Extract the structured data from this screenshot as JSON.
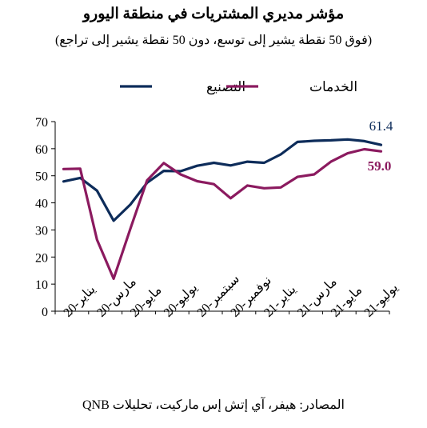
{
  "chart_data": {
    "type": "line",
    "title": "مؤشر مديري المشتريات في منطقة اليورو",
    "subtitle": "(فوق 50 نقطة يشير إلى توسع، دون 50 نقطة يشير إلى تراجع)",
    "source": "المصادر: هيفر، آي إتش إس ماركيت، تحليلات QNB",
    "ylim": [
      0,
      70
    ],
    "yticks": [
      0,
      10,
      20,
      30,
      40,
      50,
      60,
      70
    ],
    "x_tick_labels": [
      "يناير-20",
      "مارس-20",
      "مايو-20",
      "يوليو-20",
      "سبتمبر-20",
      "نوفمبر-20",
      "يناير-21",
      "مارس-21",
      "مايو-21",
      "يوليو-21"
    ],
    "x": [
      "يناير-20",
      "فبراير-20",
      "مارس-20",
      "أبريل-20",
      "مايو-20",
      "يونيو-20",
      "يوليو-20",
      "أغسطس-20",
      "سبتمبر-20",
      "أكتوبر-20",
      "نوفمبر-20",
      "ديسمبر-20",
      "يناير-21",
      "فبراير-21",
      "مارس-21",
      "أبريل-21",
      "مايو-21",
      "يونيو-21",
      "يوليو-21",
      "أغسطس-21"
    ],
    "series": [
      {
        "name": "التصنيع",
        "color": "#0d2c5a",
        "values": [
          47.9,
          49.2,
          44.5,
          33.4,
          39.4,
          47.4,
          51.8,
          51.7,
          53.7,
          54.8,
          53.8,
          55.2,
          54.8,
          57.9,
          62.5,
          62.9,
          63.1,
          63.4,
          62.8,
          61.4
        ],
        "end_label": "61.4"
      },
      {
        "name": "الخدمات",
        "color": "#8b1a5f",
        "values": [
          52.5,
          52.6,
          26.4,
          12.0,
          30.5,
          48.3,
          54.7,
          50.5,
          48.0,
          46.9,
          41.7,
          46.4,
          45.4,
          45.7,
          49.6,
          50.5,
          55.2,
          58.3,
          59.8,
          59.0
        ],
        "end_label": "59.0"
      }
    ],
    "grid": false,
    "legend": "top"
  }
}
